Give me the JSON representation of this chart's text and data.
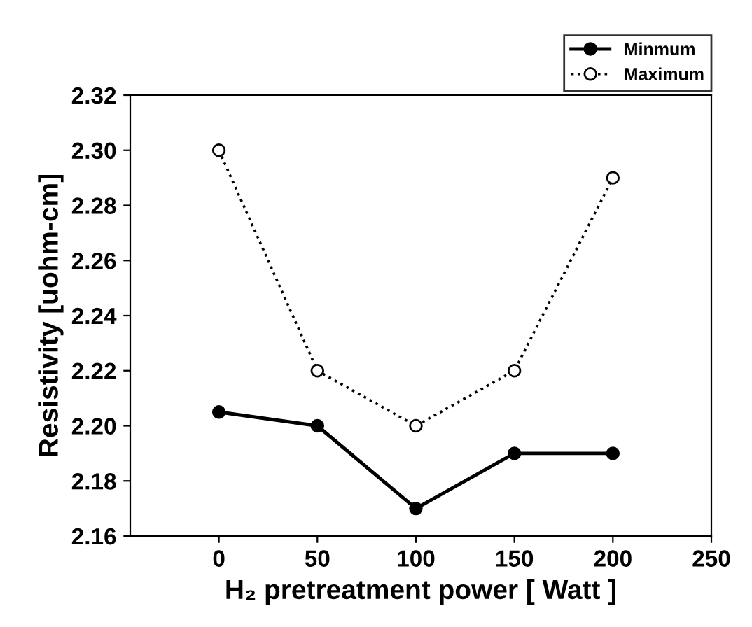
{
  "chart_data": {
    "type": "line",
    "x": [
      0,
      50,
      100,
      150,
      200
    ],
    "series": [
      {
        "name": "Minmum",
        "color": "#000000",
        "values": [
          2.205,
          2.2,
          2.17,
          2.19,
          2.19
        ],
        "marker": "circle",
        "line_style": "solid"
      },
      {
        "name": "Maximum",
        "color": "#000000",
        "values": [
          2.3,
          2.22,
          2.2,
          2.22,
          2.29
        ],
        "marker": "circle",
        "line_style": "dotted"
      }
    ],
    "xlabel": "H₂ pretreatment power [ Watt ]",
    "ylabel": "Resistivity [uohm-cm]",
    "xlim": [
      -45,
      250
    ],
    "xticks": [
      0,
      50,
      100,
      150,
      200,
      250
    ],
    "ylim": [
      2.16,
      2.32
    ],
    "yticks": [
      {
        "value": 2.16,
        "label": "2.16"
      },
      {
        "value": 2.18,
        "label": "2.18"
      },
      {
        "value": 2.2,
        "label": "2.20"
      },
      {
        "value": 2.22,
        "label": "2.22"
      },
      {
        "value": 2.24,
        "label": "2.24"
      },
      {
        "value": 2.26,
        "label": "2.26"
      },
      {
        "value": 2.28,
        "label": "2.28"
      },
      {
        "value": 2.3,
        "label": "2.30"
      },
      {
        "value": 2.32,
        "label": "2.32"
      }
    ],
    "grid": false,
    "legend": "top right"
  }
}
